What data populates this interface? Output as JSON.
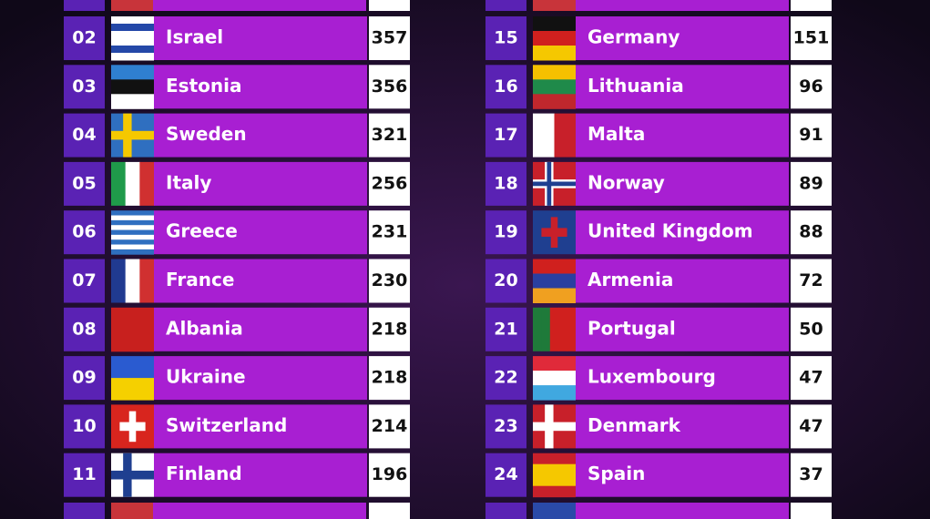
{
  "left": [
    {
      "rank": "02",
      "country": "Israel",
      "points": 357
    },
    {
      "rank": "03",
      "country": "Estonia",
      "points": 356
    },
    {
      "rank": "04",
      "country": "Sweden",
      "points": 321
    },
    {
      "rank": "05",
      "country": "Italy",
      "points": 256
    },
    {
      "rank": "06",
      "country": "Greece",
      "points": 231
    },
    {
      "rank": "07",
      "country": "France",
      "points": 230
    },
    {
      "rank": "08",
      "country": "Albania",
      "points": 218
    },
    {
      "rank": "09",
      "country": "Ukraine",
      "points": 218
    },
    {
      "rank": "10",
      "country": "Switzerland",
      "points": 214
    },
    {
      "rank": "11",
      "country": "Finland",
      "points": 196
    }
  ],
  "right": [
    {
      "rank": "15",
      "country": "Germany",
      "points": 151
    },
    {
      "rank": "16",
      "country": "Lithuania",
      "points": 96
    },
    {
      "rank": "17",
      "country": "Malta",
      "points": 91
    },
    {
      "rank": "18",
      "country": "Norway",
      "points": 89
    },
    {
      "rank": "19",
      "country": "United Kingdom",
      "points": 88
    },
    {
      "rank": "20",
      "country": "Armenia",
      "points": 72
    },
    {
      "rank": "21",
      "country": "Portugal",
      "points": 50
    },
    {
      "rank": "22",
      "country": "Luxembourg",
      "points": 47
    },
    {
      "rank": "23",
      "country": "Denmark",
      "points": 47
    },
    {
      "rank": "24",
      "country": "Spain",
      "points": 37
    }
  ]
}
